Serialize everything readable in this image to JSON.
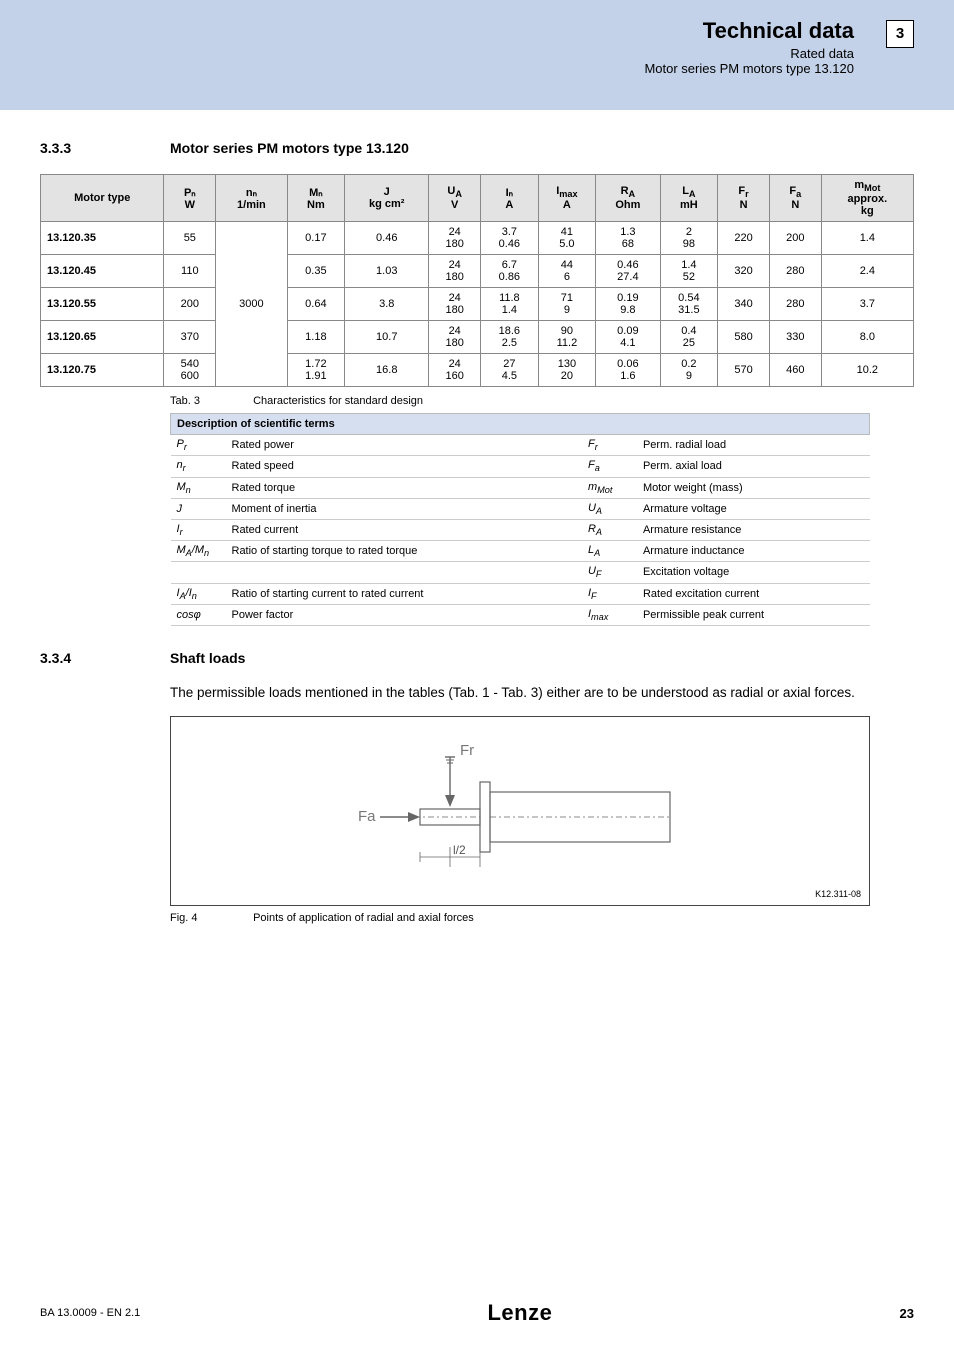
{
  "header": {
    "title": "Technical data",
    "sub1": "Rated data",
    "sub2": "Motor series PM motors type 13.120",
    "page_box": "3"
  },
  "section333": {
    "num": "3.3.3",
    "title": "Motor series PM motors type 13.120"
  },
  "data_table": {
    "headers": [
      "Motor type",
      "Pₙ\nW",
      "nₙ\n1/min",
      "Mₙ\nNm",
      "J\nkg cm²",
      "U_A\nV",
      "Iₙ\nA",
      "I_max\nA",
      "R_A\nOhm",
      "L_A\nmH",
      "F_r\nN",
      "F_a\nN",
      "m_Mot\napprox.\nkg"
    ],
    "n_value": "3000",
    "rows": [
      {
        "mt": "13.120.35",
        "P": "55",
        "M": "0.17",
        "J": "0.46",
        "UA": "24\n180",
        "In": "3.7\n0.46",
        "Imax": "41\n5.0",
        "RA": "1.3\n68",
        "LA": "2\n98",
        "Fr": "220",
        "Fa": "200",
        "m": "1.4"
      },
      {
        "mt": "13.120.45",
        "P": "110",
        "M": "0.35",
        "J": "1.03",
        "UA": "24\n180",
        "In": "6.7\n0.86",
        "Imax": "44\n6",
        "RA": "0.46\n27.4",
        "LA": "1.4\n52",
        "Fr": "320",
        "Fa": "280",
        "m": "2.4"
      },
      {
        "mt": "13.120.55",
        "P": "200",
        "M": "0.64",
        "J": "3.8",
        "UA": "24\n180",
        "In": "11.8\n1.4",
        "Imax": "71\n9",
        "RA": "0.19\n9.8",
        "LA": "0.54\n31.5",
        "Fr": "340",
        "Fa": "280",
        "m": "3.7"
      },
      {
        "mt": "13.120.65",
        "P": "370",
        "M": "1.18",
        "J": "10.7",
        "UA": "24\n180",
        "In": "18.6\n2.5",
        "Imax": "90\n11.2",
        "RA": "0.09\n4.1",
        "LA": "0.4\n25",
        "Fr": "580",
        "Fa": "330",
        "m": "8.0"
      },
      {
        "mt": "13.120.75",
        "P": "540\n600",
        "M": "1.72\n1.91",
        "J": "16.8",
        "UA": "24\n160",
        "In": "27\n4.5",
        "Imax": "130\n20",
        "RA": "0.06\n1.6",
        "LA": "0.2\n9",
        "Fr": "570",
        "Fa": "460",
        "m": "10.2"
      }
    ]
  },
  "tab3_caption": {
    "num": "Tab. 3",
    "text": "Characteristics for standard design"
  },
  "terms": {
    "header": "Description of scientific terms",
    "rows": [
      [
        "P_r",
        "Rated power",
        "F_r",
        "Perm. radial load"
      ],
      [
        "n_r",
        "Rated speed",
        "F_a",
        "Perm. axial load"
      ],
      [
        "M_n",
        "Rated torque",
        "m_Mot",
        "Motor weight (mass)"
      ],
      [
        "J",
        "Moment of inertia",
        "U_A",
        "Armature voltage"
      ],
      [
        "I_r",
        "Rated current",
        "R_A",
        "Armature resistance"
      ],
      [
        "M_A/M_n",
        "Ratio of starting torque to rated torque",
        "L_A",
        "Armature inductance"
      ],
      [
        "",
        "",
        "U_F",
        "Excitation voltage"
      ],
      [
        "I_A/I_n",
        "Ratio of starting current to rated current",
        "I_F",
        "Rated excitation current"
      ],
      [
        "cosφ",
        "Power factor",
        "I_max",
        "Permissible peak current"
      ]
    ]
  },
  "section334": {
    "num": "3.3.4",
    "title": "Shaft loads",
    "body": "The permissible loads mentioned in the tables (Tab. 1 - Tab. 3) either are to be understood as radial or axial forces."
  },
  "figure": {
    "Fr_label": "Fr",
    "Fa_label": "Fa",
    "l2_label": "l/2",
    "code": "K12.311-08"
  },
  "fig4_caption": {
    "num": "Fig. 4",
    "text": "Points of application of radial and axial forces"
  },
  "footer": {
    "left": "BA 13.0009 - EN    2.1",
    "logo": "Lenze",
    "page": "23"
  }
}
